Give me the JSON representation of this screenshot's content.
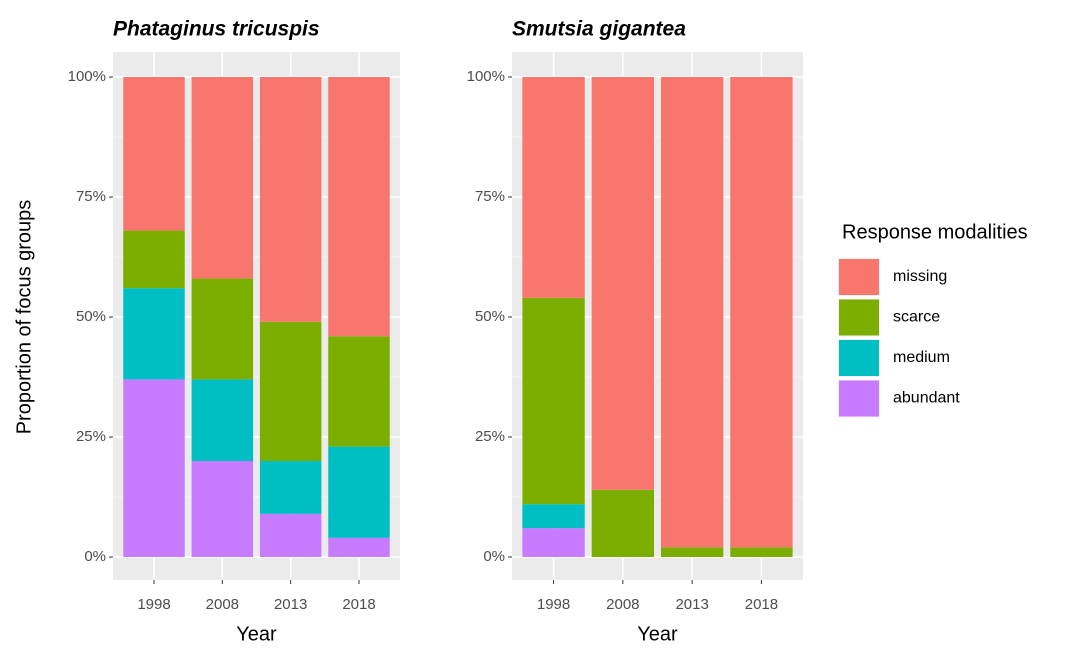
{
  "chart_data": [
    {
      "type": "bar",
      "stacked": true,
      "title": "Phataginus tricuspis",
      "xlabel": "Year",
      "ylabel": "Proportion of focus groups",
      "categories": [
        "1998",
        "2008",
        "2013",
        "2018"
      ],
      "series": [
        {
          "name": "missing",
          "color": "#F8766D",
          "values": [
            32,
            42,
            51,
            54
          ]
        },
        {
          "name": "scarce",
          "color": "#7CAE00",
          "values": [
            12,
            21,
            29,
            23
          ]
        },
        {
          "name": "medium",
          "color": "#00BFC4",
          "values": [
            19,
            17,
            11,
            19
          ]
        },
        {
          "name": "abundant",
          "color": "#C77CFF",
          "values": [
            37,
            20,
            9,
            4
          ]
        }
      ],
      "ylim": [
        0,
        100
      ],
      "yticks": [
        {
          "value": 0,
          "label": "0%"
        },
        {
          "value": 25,
          "label": "25%"
        },
        {
          "value": 50,
          "label": "50%"
        },
        {
          "value": 75,
          "label": "75%"
        },
        {
          "value": 100,
          "label": "100%"
        }
      ],
      "grid": true
    },
    {
      "type": "bar",
      "stacked": true,
      "title": "Smutsia gigantea",
      "xlabel": "Year",
      "categories": [
        "1998",
        "2008",
        "2013",
        "2018"
      ],
      "series": [
        {
          "name": "missing",
          "color": "#F8766D",
          "values": [
            46,
            86,
            98,
            98
          ]
        },
        {
          "name": "scarce",
          "color": "#7CAE00",
          "values": [
            43,
            14,
            2,
            2
          ]
        },
        {
          "name": "medium",
          "color": "#00BFC4",
          "values": [
            5,
            0,
            0,
            0
          ]
        },
        {
          "name": "abundant",
          "color": "#C77CFF",
          "values": [
            6,
            0,
            0,
            0
          ]
        }
      ],
      "ylim": [
        0,
        100
      ],
      "yticks": [
        {
          "value": 0,
          "label": "0%"
        },
        {
          "value": 25,
          "label": "25%"
        },
        {
          "value": 50,
          "label": "50%"
        },
        {
          "value": 75,
          "label": "75%"
        },
        {
          "value": 100,
          "label": "100%"
        }
      ],
      "grid": true,
      "legend_title": "Response modalities",
      "legend": "right"
    }
  ]
}
